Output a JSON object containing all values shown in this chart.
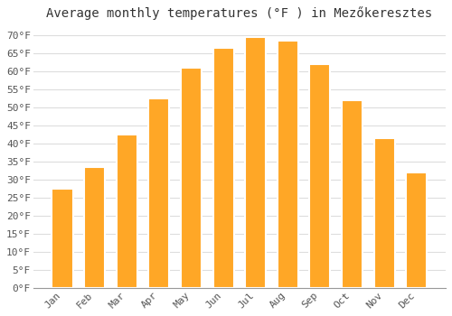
{
  "title": "Average monthly temperatures (°F ) in Mezőkeresztes",
  "months": [
    "Jan",
    "Feb",
    "Mar",
    "Apr",
    "May",
    "Jun",
    "Jul",
    "Aug",
    "Sep",
    "Oct",
    "Nov",
    "Dec"
  ],
  "values": [
    27.5,
    33.5,
    42.5,
    52.5,
    61,
    66.5,
    69.5,
    68.5,
    62,
    52,
    41.5,
    32
  ],
  "bar_color": "#FFA726",
  "bar_edge_color": "#FFFFFF",
  "background_color": "#FFFFFF",
  "plot_bg_color": "#FFFFFF",
  "ylim": [
    0,
    73
  ],
  "yticks": [
    0,
    5,
    10,
    15,
    20,
    25,
    30,
    35,
    40,
    45,
    50,
    55,
    60,
    65,
    70
  ],
  "title_fontsize": 10,
  "tick_fontsize": 8,
  "grid_color": "#DDDDDD",
  "bar_width": 0.65
}
